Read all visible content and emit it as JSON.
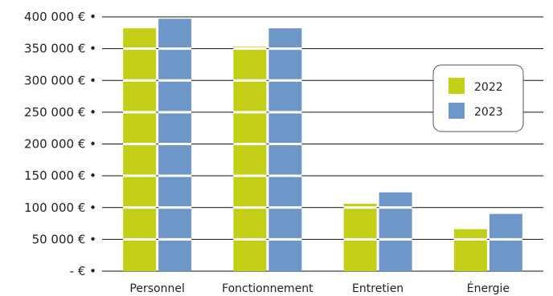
{
  "chart_data": {
    "type": "bar",
    "categories": [
      "Personnel",
      "Fonctionnement",
      "Entretien",
      "Énergie"
    ],
    "series": [
      {
        "name": "2022",
        "values": [
          382000,
          353000,
          106000,
          66000
        ]
      },
      {
        "name": "2023",
        "values": [
          397000,
          382000,
          124000,
          90000
        ]
      }
    ],
    "y_ticks": [
      0,
      50000,
      100000,
      150000,
      200000,
      250000,
      300000,
      350000,
      400000
    ],
    "y_tick_labels": [
      "- € •",
      "50 000 € •",
      "100 000 € •",
      "150 000 € •",
      "200 000 € •",
      "250 000 € •",
      "300 000 € •",
      "350 000 € •",
      "400 000 € •"
    ],
    "ylim": [
      0,
      400000
    ],
    "grid": true,
    "legend_position": "right",
    "title": "",
    "xlabel": "",
    "ylabel": ""
  },
  "colors": {
    "series": [
      "#c3cf16",
      "#6d97c8"
    ],
    "grid": "#111111",
    "legend_border": "#555555"
  }
}
